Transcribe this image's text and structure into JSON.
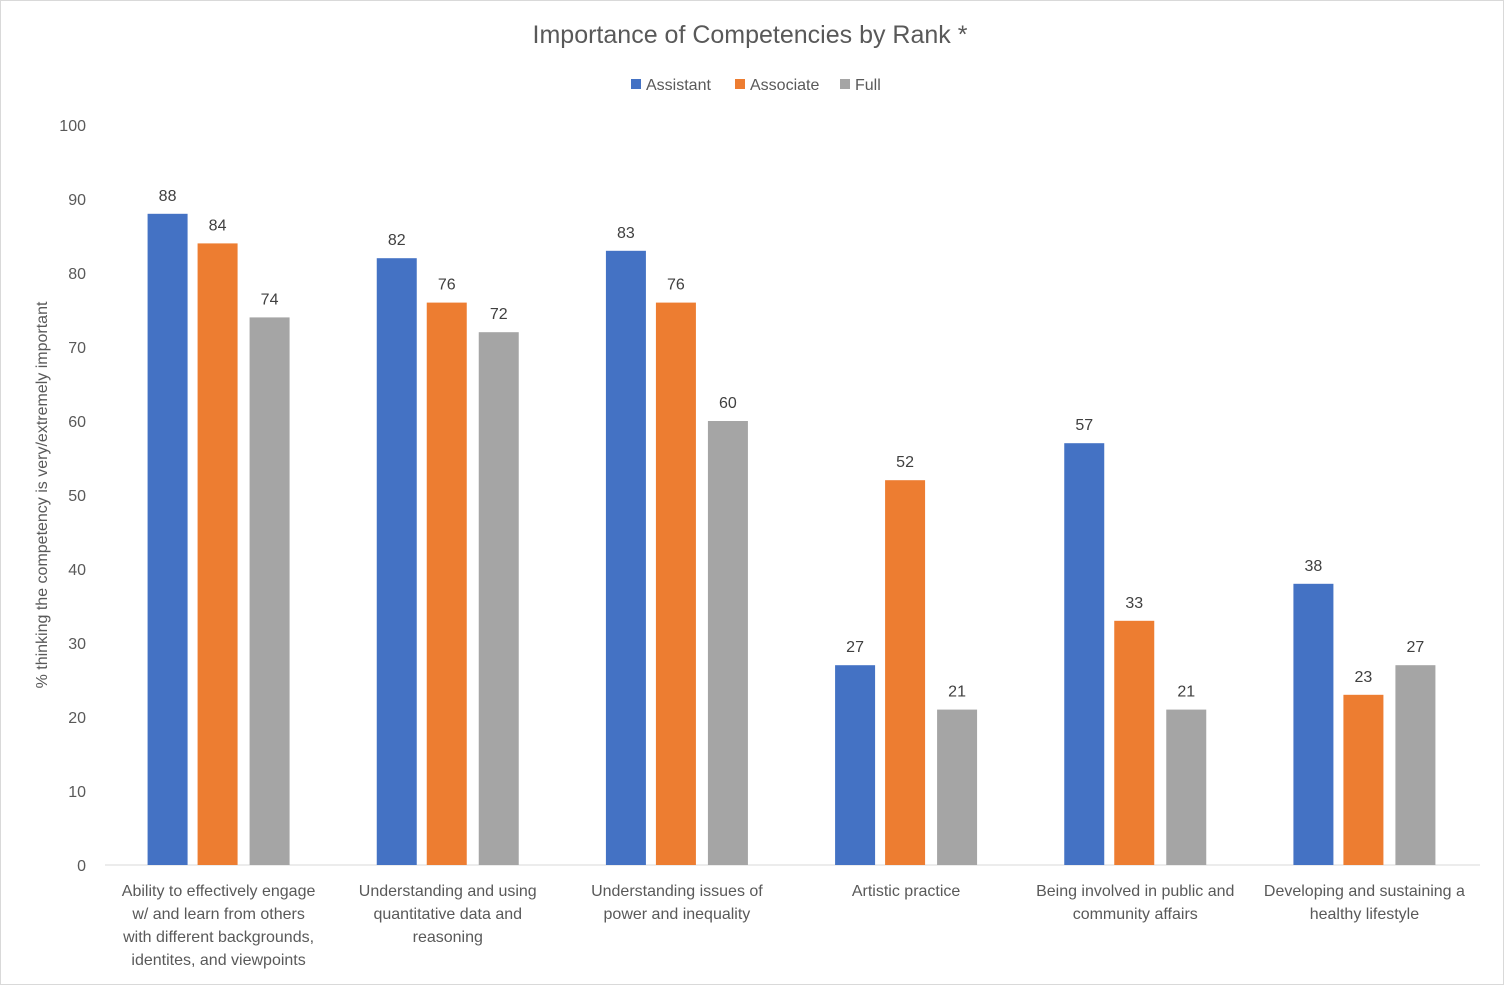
{
  "chart_data": {
    "type": "bar",
    "title": "Importance of Competencies by Rank *",
    "ylabel": "% thinking the competency is very/extremely important",
    "xlabel": "",
    "ylim": [
      0,
      100
    ],
    "yticks": [
      0,
      10,
      20,
      30,
      40,
      50,
      60,
      70,
      80,
      90,
      100
    ],
    "grid": false,
    "legend_position": "top",
    "categories": [
      [
        "Ability to effectively engage",
        "w/ and learn from others",
        "with different backgrounds,",
        "identites, and viewpoints"
      ],
      [
        "Understanding and using",
        "quantitative data and",
        "reasoning"
      ],
      [
        "Understanding issues of",
        "power and inequality"
      ],
      [
        "Artistic practice"
      ],
      [
        "Being involved in public and",
        "community affairs"
      ],
      [
        "Developing and sustaining a",
        "healthy lifestyle"
      ]
    ],
    "series": [
      {
        "name": "Assistant",
        "color": "#4472c4",
        "values": [
          88,
          82,
          83,
          27,
          57,
          38
        ]
      },
      {
        "name": "Associate",
        "color": "#ed7d31",
        "values": [
          84,
          76,
          76,
          52,
          33,
          23
        ]
      },
      {
        "name": "Full",
        "color": "#a5a5a5",
        "values": [
          74,
          72,
          60,
          21,
          21,
          27
        ]
      }
    ]
  }
}
